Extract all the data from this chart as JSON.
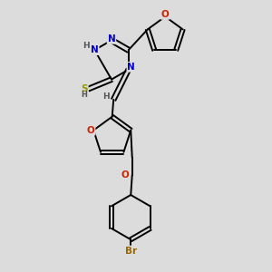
{
  "background_color": "#dcdcdc",
  "atom_colors": {
    "C": "#000000",
    "N": "#0000cc",
    "O": "#cc2200",
    "S": "#999900",
    "H": "#555555",
    "Br": "#996600"
  },
  "bond_color": "#000000",
  "bond_width": 1.4,
  "figsize": [
    3.0,
    3.0
  ],
  "dpi": 100,
  "xlim": [
    0,
    10
  ],
  "ylim": [
    0,
    10
  ]
}
